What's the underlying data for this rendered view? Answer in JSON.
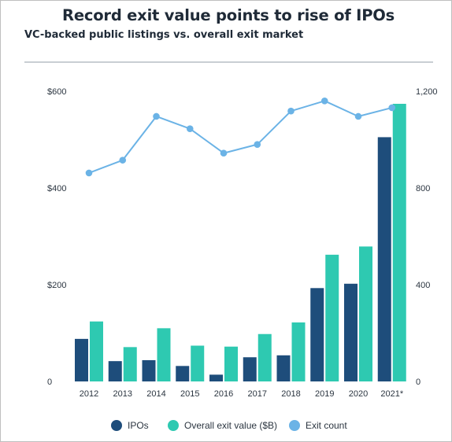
{
  "header": {
    "title": "Record exit value points to rise of IPOs",
    "subtitle": "VC-backed public listings vs. overall exit market"
  },
  "colors": {
    "ipos": "#1e4d7b",
    "exit_value": "#2ec9b1",
    "exit_count": "#6bb3e6"
  },
  "chart_data": {
    "type": "bar",
    "categories": [
      "2012",
      "2013",
      "2014",
      "2015",
      "2016",
      "2017",
      "2018",
      "2019",
      "2020",
      "2021*"
    ],
    "series": [
      {
        "name": "IPOs",
        "kind": "bar",
        "axis": "left",
        "values": [
          88,
          42,
          44,
          32,
          14,
          50,
          54,
          193,
          202,
          505
        ]
      },
      {
        "name": "Overall exit value ($B)",
        "kind": "bar",
        "axis": "left",
        "values": [
          124,
          71,
          110,
          74,
          72,
          98,
          122,
          262,
          279,
          574
        ]
      },
      {
        "name": "Exit count",
        "kind": "line",
        "axis": "right",
        "values": [
          862,
          915,
          1096,
          1045,
          944,
          980,
          1118,
          1160,
          1096,
          1132
        ]
      }
    ],
    "y_left_ticks": [
      "$600",
      "$400",
      "$200",
      "0"
    ],
    "y_left_lim": [
      0,
      600
    ],
    "y_right_ticks": [
      "1,200",
      "800",
      "400",
      "0"
    ],
    "y_right_lim": [
      0,
      1200
    ],
    "grid": false,
    "legend_position": "bottom"
  }
}
